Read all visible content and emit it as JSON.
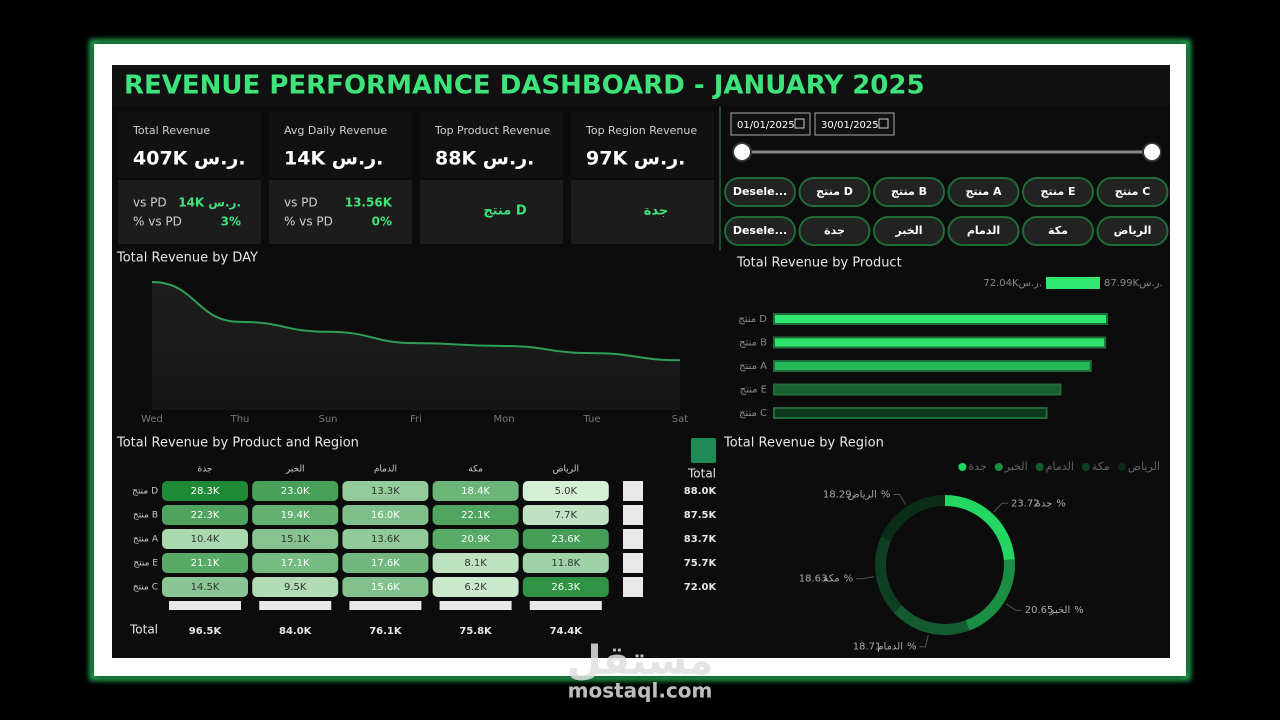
{
  "title": "REVENUE PERFORMANCE DASHBOARD - JANUARY 2025",
  "kpis": [
    {
      "label": "Total Revenue",
      "value": "407K ر.س.",
      "compare": [
        {
          "label": "vs PD",
          "value": "14K ر.س."
        },
        {
          "label": "% vs PD",
          "value": "3%"
        }
      ]
    },
    {
      "label": "Avg Daily Revenue",
      "value": "14K ر.س.",
      "compare": [
        {
          "label": "vs PD",
          "value": "13.56K"
        },
        {
          "label": "% vs PD",
          "value": "0%"
        }
      ]
    },
    {
      "label": "Top Product Revenue",
      "value": "88K ر.س.",
      "detail": "منتج D"
    },
    {
      "label": "Top Region Revenue",
      "value": "97K ر.س.",
      "detail": "جدة"
    }
  ],
  "date_range": [
    "01/01/2025",
    "30/01/2025"
  ],
  "product_slicer": [
    "Desele...",
    "منتج D",
    "منتج B",
    "منتج A",
    "منتج E",
    "منتج C"
  ],
  "region_slicer": [
    "Desele...",
    "جدة",
    "الخبر",
    "الدمام",
    "مكة",
    "الرياض"
  ],
  "chart_data": [
    {
      "type": "line",
      "title": "Total Revenue by DAY",
      "categories": [
        "Wed",
        "Thu",
        "Sun",
        "Fri",
        "Mon",
        "Tue",
        "Sat"
      ],
      "values": [
        90,
        62,
        55,
        47,
        45,
        40,
        35
      ],
      "color": "#2f9e58"
    },
    {
      "type": "bar",
      "title": "Total Revenue by Product",
      "categories": [
        "منتج D",
        "منتج B",
        "منتج A",
        "منتج E",
        "منتج C"
      ],
      "values": [
        87.99,
        87.5,
        83.7,
        75.7,
        72.04
      ],
      "color_scale": [
        {
          "value": 72.04,
          "label": "72.04Kر.س.",
          "color": "#0f3a1f"
        },
        {
          "value": 87.99,
          "label": "87.99Kر.س.",
          "color": "#2ee86f"
        }
      ]
    },
    {
      "type": "heatmap",
      "title": "Total Revenue by Product and Region",
      "columns": [
        "جدة",
        "الخبر",
        "الدمام",
        "مكة",
        "الرياض"
      ],
      "rows": [
        "منتج D",
        "منتج B",
        "منتج A",
        "منتج E",
        "منتج C"
      ],
      "values": [
        [
          28.3,
          23.0,
          13.3,
          18.4,
          5.0
        ],
        [
          22.3,
          19.4,
          16.0,
          22.1,
          7.7
        ],
        [
          10.4,
          15.1,
          13.6,
          20.9,
          23.6
        ],
        [
          21.1,
          17.1,
          17.6,
          8.1,
          11.8
        ],
        [
          14.5,
          9.5,
          15.6,
          6.2,
          26.3
        ]
      ],
      "value_labels": [
        [
          "28.3K",
          "23.0K",
          "13.3K",
          "18.4K",
          "5.0K"
        ],
        [
          "22.3K",
          "19.4K",
          "16.0K",
          "22.1K",
          "7.7K"
        ],
        [
          "10.4K",
          "15.1K",
          "13.6K",
          "20.9K",
          "23.6K"
        ],
        [
          "21.1K",
          "17.1K",
          "17.6K",
          "8.1K",
          "11.8K"
        ],
        [
          "14.5K",
          "9.5K",
          "15.6K",
          "6.2K",
          "26.3K"
        ]
      ],
      "row_totals": [
        88.0,
        87.5,
        83.7,
        75.7,
        72.0
      ],
      "row_total_labels": [
        "88.0K",
        "87.5K",
        "83.7K",
        "75.7K",
        "72.0K"
      ],
      "column_totals": [
        96.5,
        84.0,
        76.1,
        75.8,
        74.4
      ],
      "column_total_labels": [
        "96.5K",
        "84.0K",
        "76.1K",
        "75.8K",
        "74.4K"
      ],
      "total_label": "Total",
      "colors": [
        "#d4efd4",
        "#1f8a35"
      ]
    },
    {
      "type": "donut",
      "title": "Total Revenue by Region",
      "categories": [
        "جدة",
        "الخبر",
        "الدمام",
        "مكة",
        "الرياض"
      ],
      "values": [
        23.72,
        20.65,
        18.71,
        18.63,
        18.29
      ],
      "value_labels": [
        "23.72%",
        "20.65%",
        "18.71%",
        "18.63%",
        "18.29%"
      ],
      "colors": [
        "#22d863",
        "#1a8f44",
        "#145c30",
        "#0f3f22",
        "#0b2c19"
      ]
    }
  ],
  "watermark": {
    "arabic": "مستقل",
    "latin": "mostaql.com"
  }
}
